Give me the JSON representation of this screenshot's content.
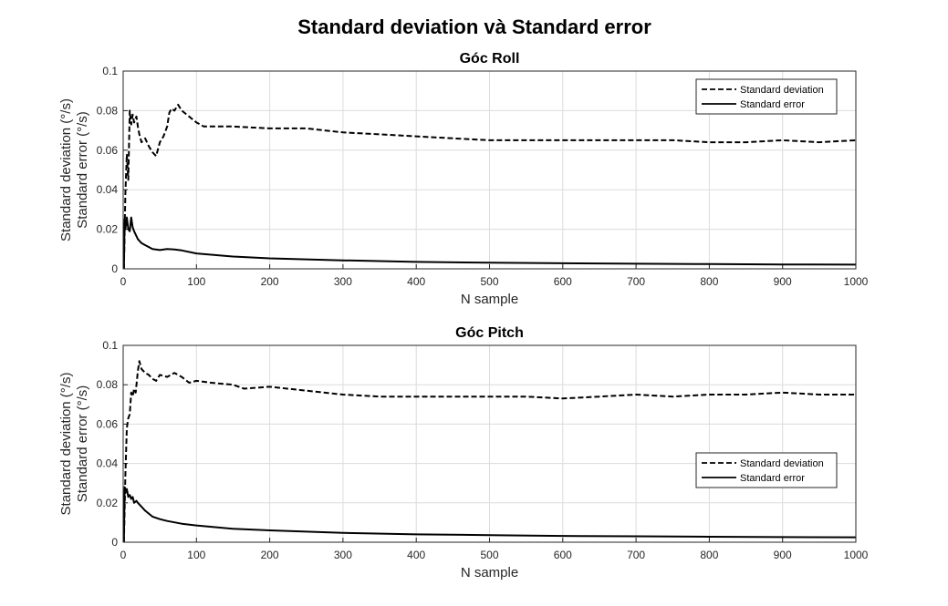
{
  "figure_title": "Standard deviation và Standard error",
  "chart_data": [
    {
      "type": "line",
      "title": "Góc Roll",
      "xlabel": "N sample",
      "ylabel": [
        "Standard deviation (°/s)",
        "Standard error (°/s)"
      ],
      "xlim": [
        0,
        1000
      ],
      "ylim": [
        0,
        0.1
      ],
      "xticks": [
        "0",
        "100",
        "200",
        "300",
        "400",
        "500",
        "600",
        "700",
        "800",
        "900",
        "1000"
      ],
      "yticks": [
        "0",
        "0.02",
        "0.04",
        "0.06",
        "0.08",
        "0.1"
      ],
      "grid": true,
      "legend_position": "top-right",
      "series": [
        {
          "name": "Standard deviation",
          "style": "dashed",
          "color": "#000000",
          "x": [
            1,
            3,
            5,
            7,
            9,
            11,
            13,
            15,
            18,
            20,
            22,
            25,
            30,
            35,
            40,
            45,
            50,
            55,
            60,
            63,
            66,
            70,
            75,
            80,
            90,
            100,
            110,
            120,
            150,
            200,
            250,
            300,
            350,
            400,
            450,
            500,
            550,
            600,
            650,
            700,
            750,
            800,
            830,
            850,
            900,
            950,
            1000
          ],
          "y": [
            0.0,
            0.038,
            0.058,
            0.045,
            0.08,
            0.073,
            0.078,
            0.074,
            0.077,
            0.072,
            0.068,
            0.064,
            0.066,
            0.062,
            0.059,
            0.057,
            0.064,
            0.067,
            0.072,
            0.079,
            0.081,
            0.08,
            0.083,
            0.08,
            0.077,
            0.074,
            0.072,
            0.072,
            0.072,
            0.071,
            0.071,
            0.069,
            0.068,
            0.067,
            0.066,
            0.065,
            0.065,
            0.065,
            0.065,
            0.065,
            0.065,
            0.064,
            0.064,
            0.064,
            0.065,
            0.064,
            0.065
          ]
        },
        {
          "name": "Standard error",
          "style": "solid",
          "color": "#000000",
          "x": [
            1,
            2,
            3,
            5,
            7,
            9,
            11,
            13,
            15,
            20,
            25,
            30,
            40,
            50,
            60,
            70,
            80,
            100,
            150,
            200,
            300,
            400,
            500,
            600,
            700,
            800,
            900,
            1000
          ],
          "y": [
            0.0,
            0.025,
            0.02,
            0.026,
            0.02,
            0.019,
            0.026,
            0.021,
            0.019,
            0.015,
            0.013,
            0.012,
            0.01,
            0.0095,
            0.01,
            0.0098,
            0.0093,
            0.0078,
            0.0062,
            0.0053,
            0.0043,
            0.0035,
            0.0031,
            0.0028,
            0.0026,
            0.0024,
            0.0022,
            0.0021
          ]
        }
      ]
    },
    {
      "type": "line",
      "title": "Góc Pitch",
      "xlabel": "N sample",
      "ylabel": [
        "Standard deviation (°/s)",
        "Standard error (°/s)"
      ],
      "xlim": [
        0,
        1000
      ],
      "ylim": [
        0,
        0.1
      ],
      "xticks": [
        "0",
        "100",
        "200",
        "300",
        "400",
        "500",
        "600",
        "700",
        "800",
        "900",
        "1000"
      ],
      "yticks": [
        "0",
        "0.02",
        "0.04",
        "0.06",
        "0.08",
        "0.1"
      ],
      "grid": true,
      "legend_position": "middle-right",
      "series": [
        {
          "name": "Standard deviation",
          "style": "dashed",
          "color": "#000000",
          "x": [
            1,
            3,
            5,
            7,
            9,
            11,
            13,
            15,
            17,
            20,
            22,
            25,
            30,
            35,
            40,
            45,
            50,
            60,
            70,
            80,
            90,
            100,
            120,
            150,
            165,
            200,
            250,
            300,
            350,
            400,
            450,
            500,
            550,
            600,
            650,
            700,
            750,
            800,
            850,
            900,
            950,
            1000
          ],
          "y": [
            0.0,
            0.034,
            0.058,
            0.063,
            0.065,
            0.076,
            0.074,
            0.078,
            0.076,
            0.087,
            0.092,
            0.088,
            0.086,
            0.085,
            0.083,
            0.082,
            0.085,
            0.084,
            0.086,
            0.084,
            0.081,
            0.082,
            0.081,
            0.08,
            0.078,
            0.079,
            0.077,
            0.075,
            0.074,
            0.074,
            0.074,
            0.074,
            0.074,
            0.073,
            0.074,
            0.075,
            0.074,
            0.075,
            0.075,
            0.076,
            0.075,
            0.075
          ]
        },
        {
          "name": "Standard error",
          "style": "solid",
          "color": "#000000",
          "x": [
            1,
            2,
            3,
            5,
            7,
            9,
            11,
            13,
            15,
            18,
            20,
            25,
            30,
            40,
            50,
            60,
            80,
            100,
            150,
            200,
            300,
            400,
            500,
            600,
            700,
            800,
            900,
            1000
          ],
          "y": [
            0.0,
            0.028,
            0.025,
            0.027,
            0.023,
            0.024,
            0.022,
            0.023,
            0.02,
            0.021,
            0.02,
            0.018,
            0.016,
            0.013,
            0.0117,
            0.0108,
            0.0094,
            0.0085,
            0.0068,
            0.006,
            0.0047,
            0.004,
            0.0036,
            0.0032,
            0.003,
            0.0028,
            0.0026,
            0.0025
          ]
        }
      ]
    }
  ]
}
